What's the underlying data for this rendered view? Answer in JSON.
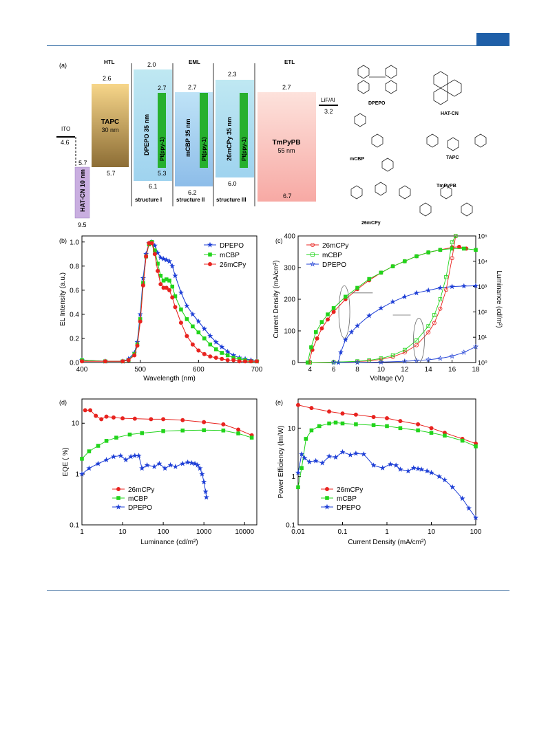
{
  "series_colors": {
    "26mCPy": "#e8231f",
    "mCBP": "#22d41c",
    "DPEPO": "#1e3fd6"
  },
  "panel_a": {
    "label": "(a)",
    "headers": {
      "htl": "HTL",
      "eml": "EML",
      "etl": "ETL"
    },
    "ito": {
      "name": "ITO",
      "value": "4.6"
    },
    "hatcn": {
      "name": "HAT-CN 10 nm",
      "top": "5.7",
      "bottom": "9.5"
    },
    "tapc": {
      "name": "TAPC",
      "thickness": "30 nm",
      "top": "2.6",
      "bottom": "5.7"
    },
    "dpepo": {
      "name": "DPEPO 35 nm",
      "top": "2.0",
      "bottom": "6.1",
      "structure": "structure I"
    },
    "mcbp": {
      "name": "mCBP 35 nm",
      "top": "2.7",
      "bottom": "6.2",
      "structure": "structure II"
    },
    "cpy": {
      "name": "26mCPy 35 nm",
      "top": "2.3",
      "bottom": "6.0",
      "structure": "structure III"
    },
    "dopant": {
      "name": "Pt(ppy-1)",
      "top": "2.7",
      "bottom": "5.3"
    },
    "tmpypb": {
      "name": "TmPyPB",
      "thickness": "55 nm",
      "top": "2.7",
      "bottom": "6.7"
    },
    "lif": {
      "name": "LiF/Al",
      "value": "3.2"
    },
    "molecules": [
      "DPEPO",
      "HAT-CN",
      "mCBP",
      "TAPC",
      "TmPyPB",
      "26mCPy"
    ]
  },
  "chart_data": [
    {
      "panel": "(b)",
      "type": "line",
      "xlabel": "Wavelength (nm)",
      "ylabel": "EL Intensity (a.u.)",
      "xlim": [
        400,
        700
      ],
      "ylim": [
        0,
        1.05
      ],
      "xticks": [
        "400",
        "500",
        "600",
        "700"
      ],
      "yticks": [
        "0.0",
        "0.2",
        "0.4",
        "0.6",
        "0.8",
        "1.0"
      ],
      "legend_position": "top-right",
      "series": [
        {
          "name": "DPEPO",
          "x": [
            400,
            440,
            470,
            480,
            490,
            495,
            500,
            505,
            510,
            515,
            520,
            525,
            530,
            535,
            540,
            545,
            550,
            555,
            560,
            570,
            580,
            590,
            600,
            610,
            620,
            630,
            640,
            650,
            660,
            670,
            680,
            690,
            700
          ],
          "y": [
            0.02,
            0.01,
            0.01,
            0.03,
            0.08,
            0.17,
            0.4,
            0.7,
            0.9,
            0.99,
            1.0,
            0.97,
            0.91,
            0.87,
            0.86,
            0.85,
            0.84,
            0.8,
            0.72,
            0.58,
            0.47,
            0.4,
            0.34,
            0.28,
            0.22,
            0.17,
            0.13,
            0.09,
            0.06,
            0.04,
            0.03,
            0.02,
            0.01
          ]
        },
        {
          "name": "mCBP",
          "x": [
            400,
            440,
            470,
            480,
            490,
            495,
            500,
            505,
            510,
            515,
            520,
            525,
            530,
            535,
            540,
            545,
            550,
            555,
            560,
            570,
            580,
            590,
            600,
            610,
            620,
            630,
            640,
            650,
            660,
            670,
            680,
            690,
            700
          ],
          "y": [
            0.02,
            0.01,
            0.01,
            0.02,
            0.07,
            0.15,
            0.36,
            0.66,
            0.88,
            0.98,
            1.0,
            0.93,
            0.82,
            0.72,
            0.68,
            0.69,
            0.68,
            0.63,
            0.55,
            0.44,
            0.36,
            0.3,
            0.25,
            0.2,
            0.15,
            0.11,
            0.08,
            0.06,
            0.04,
            0.03,
            0.02,
            0.01,
            0.01
          ]
        },
        {
          "name": "26mCPy",
          "x": [
            400,
            440,
            470,
            480,
            490,
            495,
            500,
            505,
            510,
            515,
            520,
            525,
            530,
            535,
            540,
            545,
            550,
            555,
            560,
            570,
            580,
            590,
            600,
            610,
            620,
            630,
            640,
            650,
            660,
            670,
            680,
            690,
            700
          ],
          "y": [
            0.01,
            0.01,
            0.01,
            0.02,
            0.06,
            0.14,
            0.34,
            0.64,
            0.88,
            0.99,
            0.99,
            0.9,
            0.76,
            0.65,
            0.62,
            0.62,
            0.6,
            0.54,
            0.46,
            0.33,
            0.22,
            0.15,
            0.1,
            0.07,
            0.05,
            0.04,
            0.03,
            0.02,
            0.02,
            0.01,
            0.01,
            0.01,
            0.01
          ]
        }
      ]
    },
    {
      "panel": "(c)",
      "type": "line",
      "xlabel": "Voltage (V)",
      "ylabel": "Current Density (mA/cm²)",
      "y2label": "Luminance (cd/m²)",
      "xlim": [
        3,
        18
      ],
      "ylim": [
        0,
        400
      ],
      "y2lim_log10": [
        0,
        5
      ],
      "xticks": [
        "4",
        "6",
        "8",
        "10",
        "12",
        "14",
        "16",
        "18"
      ],
      "yticks": [
        "0",
        "100",
        "200",
        "300",
        "400"
      ],
      "y2ticks": [
        "10⁰",
        "10¹",
        "10²",
        "10³",
        "10⁴",
        "10⁵"
      ],
      "legend_position": "top-left",
      "luminance_series": [
        {
          "name": "26mCPy",
          "x": [
            3.9,
            4.2,
            4.6,
            5,
            5.5,
            6,
            7,
            8,
            9,
            10,
            11,
            12,
            13,
            14,
            15,
            16,
            16.6,
            17.2
          ],
          "log10_y": [
            0,
            0.5,
            0.95,
            1.35,
            1.7,
            2.0,
            2.5,
            2.9,
            3.25,
            3.55,
            3.8,
            4.0,
            4.2,
            4.35,
            4.45,
            4.55,
            4.57,
            4.5
          ]
        },
        {
          "name": "mCBP",
          "x": [
            3.8,
            4.1,
            4.5,
            5,
            5.5,
            6,
            7,
            8,
            9,
            10,
            11,
            12,
            13,
            14,
            15,
            16,
            17,
            18
          ],
          "log10_y": [
            0,
            0.6,
            1.2,
            1.6,
            1.9,
            2.15,
            2.6,
            2.95,
            3.3,
            3.55,
            3.8,
            4.0,
            4.2,
            4.35,
            4.45,
            4.5,
            4.5,
            4.45
          ]
        },
        {
          "name": "DPEPO",
          "x": [
            6.4,
            6.6,
            7,
            7.5,
            8,
            9,
            10,
            11,
            12,
            13,
            14,
            15,
            16,
            17,
            18
          ],
          "log10_y": [
            0,
            0.4,
            0.9,
            1.2,
            1.45,
            1.85,
            2.15,
            2.4,
            2.6,
            2.75,
            2.85,
            2.95,
            3.0,
            3.02,
            3.03
          ]
        }
      ],
      "current_series": [
        {
          "name": "26mCPy",
          "x": [
            4,
            6,
            8,
            9,
            10,
            11,
            12,
            13,
            14,
            14.5,
            15,
            15.5,
            16,
            16.3
          ],
          "y": [
            0,
            1,
            3,
            5,
            10,
            18,
            32,
            55,
            95,
            125,
            170,
            230,
            330,
            400
          ]
        },
        {
          "name": "mCBP",
          "x": [
            4,
            6,
            8,
            9,
            10,
            11,
            12,
            13,
            14,
            14.5,
            15,
            15.5,
            16,
            16.3
          ],
          "y": [
            0,
            1,
            4,
            7,
            13,
            23,
            40,
            70,
            115,
            150,
            200,
            270,
            380,
            400
          ]
        },
        {
          "name": "DPEPO",
          "x": [
            6,
            8,
            10,
            12,
            13,
            14,
            15,
            16,
            17,
            18
          ],
          "y": [
            0,
            0.5,
            1.5,
            4,
            6,
            9,
            13,
            20,
            32,
            50
          ]
        }
      ]
    },
    {
      "panel": "(d)",
      "type": "line",
      "xlabel": "Luminance (cd/m²)",
      "ylabel": "EQE  ( %)",
      "xscale": "log",
      "yscale": "log",
      "xlim": [
        1,
        20000
      ],
      "ylim": [
        0.1,
        30
      ],
      "xticks": [
        "1",
        "10",
        "100",
        "1000",
        "10000"
      ],
      "yticks": [
        "0.1",
        "1",
        "10"
      ],
      "legend_position": "bottom-left",
      "series": [
        {
          "name": "26mCPy",
          "x": [
            1.2,
            1.6,
            2.2,
            3,
            4,
            6,
            10,
            20,
            50,
            100,
            300,
            1000,
            3000,
            7000,
            15000
          ],
          "y": [
            18,
            18,
            14,
            12,
            13.5,
            13,
            12.5,
            12.3,
            12,
            12,
            11.5,
            10.5,
            9.5,
            7.5,
            5.8
          ]
        },
        {
          "name": "mCBP",
          "x": [
            1,
            1.5,
            2.5,
            4,
            7,
            15,
            30,
            100,
            300,
            1000,
            3000,
            7000,
            15000
          ],
          "y": [
            2,
            2.8,
            3.6,
            4.5,
            5.2,
            6,
            6.4,
            7,
            7.2,
            7.3,
            7.2,
            6.3,
            5.2
          ]
        },
        {
          "name": "DPEPO",
          "x": [
            1,
            1.5,
            2.5,
            4,
            6,
            9,
            12,
            16,
            20,
            25,
            30,
            40,
            60,
            80,
            110,
            150,
            200,
            300,
            400,
            500,
            600,
            700,
            800,
            900,
            1000,
            1100,
            1150
          ],
          "y": [
            1,
            1.3,
            1.6,
            1.9,
            2.2,
            2.3,
            1.9,
            2.2,
            2.3,
            2.3,
            1.3,
            1.5,
            1.4,
            1.6,
            1.3,
            1.5,
            1.4,
            1.6,
            1.7,
            1.65,
            1.6,
            1.5,
            1.3,
            1.0,
            0.7,
            0.45,
            0.35
          ]
        }
      ]
    },
    {
      "panel": "(e)",
      "type": "line",
      "xlabel": "Current Density (mA/cm²)",
      "ylabel": "Power Efficiency (lm/W)",
      "xscale": "log",
      "yscale": "log",
      "xlim": [
        0.01,
        100
      ],
      "ylim": [
        0.1,
        40
      ],
      "xticks": [
        "0.01",
        "0.1",
        "1",
        "10",
        "100"
      ],
      "yticks": [
        "0.1",
        "1",
        "10"
      ],
      "legend_position": "bottom-left",
      "series": [
        {
          "name": "26mCPy",
          "x": [
            0.01,
            0.02,
            0.05,
            0.1,
            0.2,
            0.5,
            1,
            2,
            5,
            10,
            20,
            50,
            100
          ],
          "y": [
            30,
            26,
            22,
            20,
            19,
            17,
            16,
            14,
            12,
            10,
            8,
            6,
            4.8
          ]
        },
        {
          "name": "mCBP",
          "x": [
            0.01,
            0.012,
            0.015,
            0.02,
            0.03,
            0.05,
            0.07,
            0.1,
            0.2,
            0.5,
            1,
            2,
            5,
            10,
            20,
            50,
            100
          ],
          "y": [
            0.6,
            1.5,
            6,
            9,
            11,
            12.5,
            13,
            12.5,
            12,
            11.5,
            11,
            10,
            9,
            8,
            7,
            5.5,
            4.2
          ]
        },
        {
          "name": "DPEPO",
          "x": [
            0.01,
            0.012,
            0.014,
            0.018,
            0.025,
            0.035,
            0.05,
            0.07,
            0.1,
            0.15,
            0.2,
            0.3,
            0.5,
            0.8,
            1.2,
            1.6,
            2,
            3,
            4,
            5,
            6,
            8,
            10,
            15,
            20,
            30,
            50,
            70,
            100
          ],
          "y": [
            1.2,
            2.9,
            2.4,
            2.0,
            2.1,
            1.9,
            2.6,
            2.5,
            3.2,
            2.8,
            3.0,
            2.9,
            1.7,
            1.5,
            1.8,
            1.7,
            1.4,
            1.3,
            1.5,
            1.45,
            1.4,
            1.3,
            1.2,
            1.0,
            0.85,
            0.6,
            0.35,
            0.22,
            0.14
          ]
        }
      ]
    }
  ]
}
